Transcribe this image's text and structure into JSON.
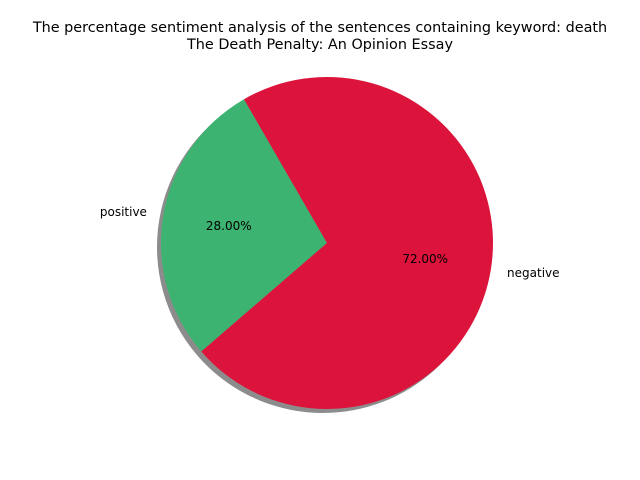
{
  "chart_data": {
    "type": "pie",
    "title_line1": "The percentage sentiment analysis of the sentences containing keyword: death",
    "title_line2": "The Death Penalty: An Opinion Essay",
    "labels": [
      "positive",
      "negative"
    ],
    "values": [
      28.0,
      72.0
    ],
    "value_labels": [
      "28.00%",
      "72.00%"
    ],
    "colors": [
      "#3cb371",
      "#dc143c"
    ],
    "shadow": true,
    "start_angle_deg": 120,
    "legend": "none"
  }
}
